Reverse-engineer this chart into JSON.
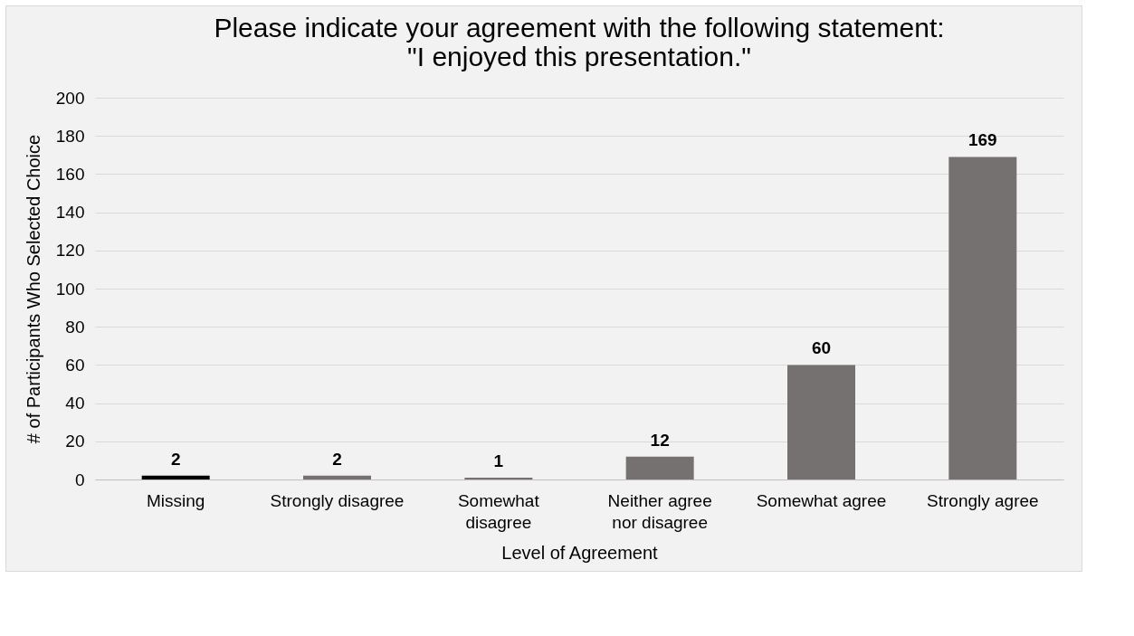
{
  "chart_data": {
    "type": "bar",
    "title": [
      "Please indicate your agreement with the following statement:",
      "\"I enjoyed this presentation.\""
    ],
    "xlabel": "Level of Agreement",
    "ylabel": "# of Participants Who Selected Choice",
    "categories": [
      "Missing",
      "Strongly disagree",
      "Somewhat\ndisagree",
      "Neither agree\nnor disagree",
      "Somewhat agree",
      "Strongly agree"
    ],
    "values": [
      2,
      2,
      1,
      12,
      60,
      169
    ],
    "colors": [
      "#000000",
      "#767171",
      "#767171",
      "#767171",
      "#767171",
      "#767171"
    ],
    "ylim": [
      0,
      200
    ],
    "yticks": [
      0,
      20,
      40,
      60,
      80,
      100,
      120,
      140,
      160,
      180,
      200
    ],
    "grid": "y",
    "data_labels": true
  }
}
